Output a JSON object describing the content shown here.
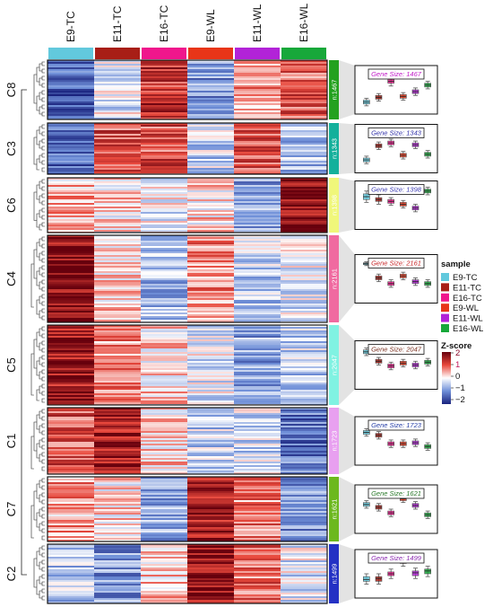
{
  "chart_data": {
    "type": "heatmap",
    "samples": [
      "E9-TC",
      "E11-TC",
      "E16-TC",
      "E9-WL",
      "E11-WL",
      "E16-WL"
    ],
    "sample_colors": [
      "#62c9dd",
      "#a81e16",
      "#f0168c",
      "#e83518",
      "#b223d8",
      "#17a83a"
    ],
    "legend_title": "sample",
    "zscore_title": "Z-score",
    "zscore_ticks": [
      "2",
      "1",
      "0",
      "−1",
      "−2"
    ],
    "zscore_range": [
      -2,
      2
    ],
    "clusters": [
      {
        "name": "C8",
        "n_label": "n:1467",
        "gene_size_label": "Gene Size: 1467",
        "color": "#23a11f",
        "label_color": "#c21ac8",
        "profile": [
          -1.4,
          -0.2,
          1.3,
          -0.9,
          0.5,
          0.9
        ],
        "boxes": [
          {
            "median": -1.3,
            "q1": -1.5,
            "q3": -1.1,
            "lo": -1.7,
            "hi": -0.9
          },
          {
            "median": -0.8,
            "q1": -1.0,
            "q3": -0.6,
            "lo": -1.2,
            "hi": -0.4
          },
          {
            "median": 0.9,
            "q1": 0.7,
            "q3": 1.1,
            "lo": 0.4,
            "hi": 1.4
          },
          {
            "median": -0.7,
            "q1": -0.9,
            "q3": -0.5,
            "lo": -1.1,
            "hi": -0.3
          },
          {
            "median": -0.2,
            "q1": -0.4,
            "q3": 0.0,
            "lo": -0.6,
            "hi": 0.2
          },
          {
            "median": 0.5,
            "q1": 0.3,
            "q3": 0.7,
            "lo": 0.1,
            "hi": 0.9
          }
        ]
      },
      {
        "name": "C3",
        "n_label": "n:1343",
        "gene_size_label": "Gene Size: 1343",
        "color": "#14b09b",
        "label_color": "#3030a8",
        "profile": [
          -1.4,
          1.0,
          1.0,
          -0.4,
          1.1,
          -0.6
        ],
        "boxes": [
          {
            "median": -1.2,
            "q1": -1.4,
            "q3": -1.0,
            "lo": -1.6,
            "hi": -0.8
          },
          {
            "median": 0.3,
            "q1": 0.1,
            "q3": 0.5,
            "lo": -0.1,
            "hi": 0.7
          },
          {
            "median": 0.6,
            "q1": 0.4,
            "q3": 0.8,
            "lo": 0.2,
            "hi": 1.0
          },
          {
            "median": -0.7,
            "q1": -0.9,
            "q3": -0.5,
            "lo": -1.1,
            "hi": -0.3
          },
          {
            "median": 0.4,
            "q1": 0.2,
            "q3": 0.6,
            "lo": 0.0,
            "hi": 0.8
          },
          {
            "median": -0.6,
            "q1": -0.8,
            "q3": -0.4,
            "lo": -1.0,
            "hi": -0.2
          }
        ]
      },
      {
        "name": "C6",
        "n_label": "n:1398",
        "gene_size_label": "Gene Size: 1398",
        "color": "#f0f77a",
        "label_color": "#3a3ab0",
        "profile": [
          0.4,
          0.2,
          -0.1,
          0.2,
          -0.8,
          1.8
        ],
        "boxes": [
          {
            "median": 0.9,
            "q1": 0.6,
            "q3": 1.2,
            "lo": 0.3,
            "hi": 1.5
          },
          {
            "median": 0.6,
            "q1": 0.4,
            "q3": 0.8,
            "lo": 0.1,
            "hi": 1.1
          },
          {
            "median": 0.4,
            "q1": 0.2,
            "q3": 0.6,
            "lo": 0.0,
            "hi": 0.8
          },
          {
            "median": 0.1,
            "q1": -0.1,
            "q3": 0.3,
            "lo": -0.3,
            "hi": 0.5
          },
          {
            "median": -0.3,
            "q1": -0.5,
            "q3": -0.1,
            "lo": -0.7,
            "hi": 0.1
          },
          {
            "median": 1.5,
            "q1": 1.3,
            "q3": 1.7,
            "lo": 1.1,
            "hi": 1.9
          }
        ]
      },
      {
        "name": "C4",
        "n_label": "n:2161",
        "gene_size_label": "Gene Size: 2161",
        "color": "#f06aa0",
        "label_color": "#c8282a",
        "profile": [
          1.8,
          0.3,
          -0.6,
          0.6,
          -0.4,
          -0.2
        ],
        "boxes": [
          {
            "median": 1.6,
            "q1": 1.5,
            "q3": 1.7,
            "lo": 1.4,
            "hi": 1.8
          },
          {
            "median": 0.1,
            "q1": -0.1,
            "q3": 0.3,
            "lo": -0.3,
            "hi": 0.5
          },
          {
            "median": -0.5,
            "q1": -0.7,
            "q3": -0.3,
            "lo": -0.9,
            "hi": -0.1
          },
          {
            "median": 0.3,
            "q1": 0.1,
            "q3": 0.5,
            "lo": -0.1,
            "hi": 0.7
          },
          {
            "median": -0.3,
            "q1": -0.5,
            "q3": -0.1,
            "lo": -0.7,
            "hi": 0.1
          },
          {
            "median": -0.5,
            "q1": -0.7,
            "q3": -0.3,
            "lo": -0.9,
            "hi": -0.1
          }
        ]
      },
      {
        "name": "C5",
        "n_label": "n:2047",
        "gene_size_label": "Gene Size: 2047",
        "color": "#80f2e2",
        "label_color": "#7a3020",
        "profile": [
          1.6,
          0.6,
          0.2,
          -0.2,
          -0.8,
          -0.4
        ],
        "boxes": [
          {
            "median": 1.4,
            "q1": 1.2,
            "q3": 1.6,
            "lo": 1.0,
            "hi": 1.8
          },
          {
            "median": 0.4,
            "q1": 0.2,
            "q3": 0.6,
            "lo": 0.0,
            "hi": 0.8
          },
          {
            "median": -0.1,
            "q1": -0.3,
            "q3": 0.1,
            "lo": -0.5,
            "hi": 0.3
          },
          {
            "median": 0.2,
            "q1": 0.0,
            "q3": 0.4,
            "lo": -0.2,
            "hi": 0.6
          },
          {
            "median": 0.0,
            "q1": -0.2,
            "q3": 0.2,
            "lo": -0.4,
            "hi": 0.4
          },
          {
            "median": 0.3,
            "q1": 0.1,
            "q3": 0.5,
            "lo": -0.1,
            "hi": 0.7
          }
        ]
      },
      {
        "name": "C1",
        "n_label": "n:1723",
        "gene_size_label": "Gene Size: 1723",
        "color": "#e8a0f0",
        "label_color": "#2840a8",
        "profile": [
          1.0,
          1.6,
          0.2,
          -0.4,
          -0.3,
          -1.2
        ],
        "boxes": [
          {
            "median": 0.9,
            "q1": 0.7,
            "q3": 1.1,
            "lo": 0.5,
            "hi": 1.3
          },
          {
            "median": 0.6,
            "q1": 0.4,
            "q3": 0.8,
            "lo": 0.2,
            "hi": 1.0
          },
          {
            "median": -0.3,
            "q1": -0.5,
            "q3": -0.1,
            "lo": -0.7,
            "hi": 0.1
          },
          {
            "median": -0.3,
            "q1": -0.5,
            "q3": -0.1,
            "lo": -0.7,
            "hi": 0.1
          },
          {
            "median": -0.2,
            "q1": -0.4,
            "q3": 0.0,
            "lo": -0.6,
            "hi": 0.2
          },
          {
            "median": -0.6,
            "q1": -0.8,
            "q3": -0.4,
            "lo": -1.0,
            "hi": -0.2
          }
        ]
      },
      {
        "name": "C7",
        "n_label": "n:1621",
        "gene_size_label": "Gene Size: 1621",
        "color": "#6cb81e",
        "label_color": "#2a7a2a",
        "profile": [
          0.5,
          0.2,
          -0.8,
          1.6,
          0.7,
          -0.9
        ],
        "boxes": [
          {
            "median": 0.5,
            "q1": 0.3,
            "q3": 0.7,
            "lo": 0.1,
            "hi": 0.9
          },
          {
            "median": 0.2,
            "q1": 0.0,
            "q3": 0.4,
            "lo": -0.2,
            "hi": 0.6
          },
          {
            "median": -0.4,
            "q1": -0.6,
            "q3": -0.2,
            "lo": -0.8,
            "hi": 0.0
          },
          {
            "median": 1.1,
            "q1": 0.9,
            "q3": 1.3,
            "lo": 0.7,
            "hi": 1.5
          },
          {
            "median": 0.4,
            "q1": 0.2,
            "q3": 0.6,
            "lo": 0.0,
            "hi": 0.8
          },
          {
            "median": -0.6,
            "q1": -0.8,
            "q3": -0.4,
            "lo": -1.0,
            "hi": -0.2
          }
        ]
      },
      {
        "name": "C2",
        "n_label": "n:1499",
        "gene_size_label": "Gene Size: 1499",
        "color": "#2431c4",
        "label_color": "#8a28b0",
        "profile": [
          -0.5,
          -0.9,
          0.3,
          1.7,
          0.8,
          -0.2
        ],
        "boxes": [
          {
            "median": -0.6,
            "q1": -0.8,
            "q3": -0.3,
            "lo": -1.1,
            "hi": 0.0
          },
          {
            "median": -0.5,
            "q1": -0.8,
            "q3": -0.3,
            "lo": -1.1,
            "hi": 0.0
          },
          {
            "median": 0.0,
            "q1": -0.2,
            "q3": 0.2,
            "lo": -0.5,
            "hi": 0.5
          },
          {
            "median": 1.3,
            "q1": 1.1,
            "q3": 1.5,
            "lo": 0.8,
            "hi": 1.8
          },
          {
            "median": 0.1,
            "q1": -0.2,
            "q3": 0.3,
            "lo": -0.5,
            "hi": 0.6
          },
          {
            "median": 0.3,
            "q1": 0.0,
            "q3": 0.5,
            "lo": -0.3,
            "hi": 0.8
          }
        ]
      }
    ]
  }
}
